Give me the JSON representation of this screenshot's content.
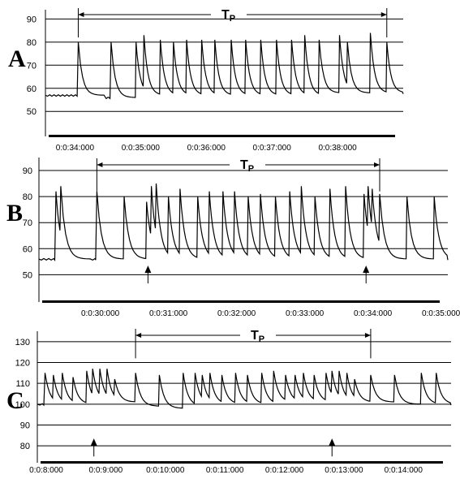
{
  "chart_data": [
    {
      "type": "line",
      "panel_label": "A",
      "interval_label": "T",
      "interval_sub": "P",
      "y_ticks": [
        50,
        60,
        70,
        80,
        90
      ],
      "x_ticks": [
        "0:0:34:000",
        "0:0:35:000",
        "0:0:36:000",
        "0:0:37:000",
        "0:0:38:000"
      ],
      "x_tick_values": [
        34,
        35,
        36,
        37,
        38
      ],
      "xlim": [
        33.55,
        39.0
      ],
      "ylim": [
        42,
        94
      ],
      "interval": [
        34.05,
        38.75
      ],
      "arrows": [],
      "baseline_segments": [
        [
          33.55,
          57
        ],
        [
          34.28,
          56
        ],
        [
          34.9,
          56.5
        ],
        [
          35.5,
          57
        ],
        [
          36.0,
          57
        ],
        [
          36.7,
          57.5
        ],
        [
          37.3,
          57
        ],
        [
          38.0,
          58
        ]
      ],
      "spikes": [
        {
          "x": 34.05,
          "peak": 80,
          "base": 57
        },
        {
          "x": 34.55,
          "peak": 80,
          "base": 56
        },
        {
          "x": 34.93,
          "peak": 80,
          "base": 57
        },
        {
          "x": 35.05,
          "peak": 83,
          "base": 57
        },
        {
          "x": 35.3,
          "peak": 81,
          "base": 57
        },
        {
          "x": 35.5,
          "peak": 80,
          "base": 57
        },
        {
          "x": 35.7,
          "peak": 81,
          "base": 57
        },
        {
          "x": 35.93,
          "peak": 81,
          "base": 57
        },
        {
          "x": 36.13,
          "peak": 81,
          "base": 57
        },
        {
          "x": 36.38,
          "peak": 81,
          "base": 57
        },
        {
          "x": 36.6,
          "peak": 81,
          "base": 57
        },
        {
          "x": 36.83,
          "peak": 81,
          "base": 57
        },
        {
          "x": 37.07,
          "peak": 81,
          "base": 57
        },
        {
          "x": 37.3,
          "peak": 81,
          "base": 57
        },
        {
          "x": 37.5,
          "peak": 83,
          "base": 57
        },
        {
          "x": 37.72,
          "peak": 81,
          "base": 58
        },
        {
          "x": 38.03,
          "peak": 83,
          "base": 58
        },
        {
          "x": 38.15,
          "peak": 80,
          "base": 58
        },
        {
          "x": 38.5,
          "peak": 84,
          "base": 58
        },
        {
          "x": 38.75,
          "peak": 80,
          "base": 58
        }
      ]
    },
    {
      "type": "line",
      "panel_label": "B",
      "interval_label": "T",
      "interval_sub": "P",
      "y_ticks": [
        50,
        60,
        70,
        80,
        90
      ],
      "x_ticks": [
        "0:0:30:000",
        "0:0:31:000",
        "0:0:32:000",
        "0:0:33:000",
        "0:0:34:000",
        "0:0:35:000"
      ],
      "x_tick_values": [
        30,
        31,
        32,
        33,
        34,
        35
      ],
      "xlim": [
        29.1,
        35.1
      ],
      "ylim": [
        42,
        95
      ],
      "interval": [
        29.95,
        34.1
      ],
      "arrows": [
        30.7,
        33.9
      ],
      "baseline_segments": [
        [
          29.1,
          57
        ],
        [
          30.1,
          56
        ],
        [
          30.6,
          56
        ],
        [
          31.5,
          56
        ],
        [
          32.4,
          56
        ],
        [
          33.2,
          56
        ],
        [
          33.7,
          57
        ],
        [
          34.3,
          56
        ]
      ],
      "spikes": [
        {
          "x": 29.35,
          "peak": 82,
          "base": 56
        },
        {
          "x": 29.42,
          "peak": 84,
          "base": 56
        },
        {
          "x": 29.95,
          "peak": 82,
          "base": 56
        },
        {
          "x": 30.35,
          "peak": 80,
          "base": 56
        },
        {
          "x": 30.68,
          "peak": 78,
          "base": 57
        },
        {
          "x": 30.75,
          "peak": 84,
          "base": 56
        },
        {
          "x": 30.82,
          "peak": 85,
          "base": 56
        },
        {
          "x": 31.0,
          "peak": 80,
          "base": 56
        },
        {
          "x": 31.17,
          "peak": 83,
          "base": 56
        },
        {
          "x": 31.43,
          "peak": 80,
          "base": 56
        },
        {
          "x": 31.6,
          "peak": 82,
          "base": 56
        },
        {
          "x": 31.8,
          "peak": 82,
          "base": 56
        },
        {
          "x": 31.97,
          "peak": 82,
          "base": 56
        },
        {
          "x": 32.17,
          "peak": 80,
          "base": 56
        },
        {
          "x": 32.35,
          "peak": 81,
          "base": 56
        },
        {
          "x": 32.57,
          "peak": 80,
          "base": 56
        },
        {
          "x": 32.78,
          "peak": 82,
          "base": 56
        },
        {
          "x": 32.95,
          "peak": 84,
          "base": 56
        },
        {
          "x": 33.15,
          "peak": 80,
          "base": 56
        },
        {
          "x": 33.37,
          "peak": 83,
          "base": 56
        },
        {
          "x": 33.6,
          "peak": 84,
          "base": 56
        },
        {
          "x": 33.87,
          "peak": 81,
          "base": 57
        },
        {
          "x": 33.93,
          "peak": 84,
          "base": 57
        },
        {
          "x": 33.99,
          "peak": 83,
          "base": 57
        },
        {
          "x": 34.1,
          "peak": 81,
          "base": 56
        },
        {
          "x": 34.5,
          "peak": 80,
          "base": 56
        },
        {
          "x": 34.9,
          "peak": 80,
          "base": 56
        }
      ]
    },
    {
      "type": "line",
      "panel_label": "C",
      "interval_label": "T",
      "interval_sub": "P",
      "y_ticks": [
        80,
        90,
        100,
        110,
        120,
        130
      ],
      "x_ticks": [
        "0:0:8:000",
        "0:0:9:000",
        "0:0:10:000",
        "0:0:11:000",
        "0:0:12:000",
        "0:0:13:000",
        "0:0:14:000"
      ],
      "x_tick_values": [
        8,
        9,
        10,
        11,
        12,
        13,
        14
      ],
      "xlim": [
        7.85,
        14.8
      ],
      "ylim": [
        75,
        135
      ],
      "interval": [
        9.5,
        13.45
      ],
      "arrows": [
        8.8,
        12.8
      ],
      "baseline_segments": [
        [
          7.85,
          100
        ],
        [
          9.6,
          99
        ],
        [
          10.2,
          98
        ],
        [
          10.6,
          100
        ],
        [
          11.3,
          100
        ],
        [
          12.0,
          101
        ],
        [
          13.0,
          101
        ],
        [
          13.8,
          100
        ]
      ],
      "spikes": [
        {
          "x": 7.98,
          "peak": 115,
          "base": 100
        },
        {
          "x": 8.12,
          "peak": 114,
          "base": 100
        },
        {
          "x": 8.27,
          "peak": 115,
          "base": 100
        },
        {
          "x": 8.45,
          "peak": 113,
          "base": 100
        },
        {
          "x": 8.68,
          "peak": 116,
          "base": 100
        },
        {
          "x": 8.78,
          "peak": 117,
          "base": 101
        },
        {
          "x": 8.9,
          "peak": 117,
          "base": 101
        },
        {
          "x": 9.02,
          "peak": 117,
          "base": 101
        },
        {
          "x": 9.15,
          "peak": 112,
          "base": 101
        },
        {
          "x": 9.5,
          "peak": 115,
          "base": 99
        },
        {
          "x": 9.9,
          "peak": 114,
          "base": 98
        },
        {
          "x": 10.3,
          "peak": 115,
          "base": 99
        },
        {
          "x": 10.5,
          "peak": 115,
          "base": 100
        },
        {
          "x": 10.62,
          "peak": 114,
          "base": 100
        },
        {
          "x": 10.75,
          "peak": 115,
          "base": 100
        },
        {
          "x": 10.95,
          "peak": 114,
          "base": 100
        },
        {
          "x": 11.18,
          "peak": 115,
          "base": 100
        },
        {
          "x": 11.38,
          "peak": 114,
          "base": 100
        },
        {
          "x": 11.62,
          "peak": 115,
          "base": 100
        },
        {
          "x": 11.82,
          "peak": 116,
          "base": 101
        },
        {
          "x": 12.02,
          "peak": 114,
          "base": 101
        },
        {
          "x": 12.18,
          "peak": 114,
          "base": 101
        },
        {
          "x": 12.32,
          "peak": 115,
          "base": 101
        },
        {
          "x": 12.5,
          "peak": 114,
          "base": 101
        },
        {
          "x": 12.7,
          "peak": 115,
          "base": 101
        },
        {
          "x": 12.8,
          "peak": 116,
          "base": 101
        },
        {
          "x": 12.92,
          "peak": 116,
          "base": 101
        },
        {
          "x": 13.05,
          "peak": 115,
          "base": 101
        },
        {
          "x": 13.18,
          "peak": 112,
          "base": 101
        },
        {
          "x": 13.45,
          "peak": 114,
          "base": 101
        },
        {
          "x": 13.85,
          "peak": 114,
          "base": 100
        },
        {
          "x": 14.3,
          "peak": 115,
          "base": 100
        },
        {
          "x": 14.55,
          "peak": 115,
          "base": 100
        }
      ]
    }
  ]
}
